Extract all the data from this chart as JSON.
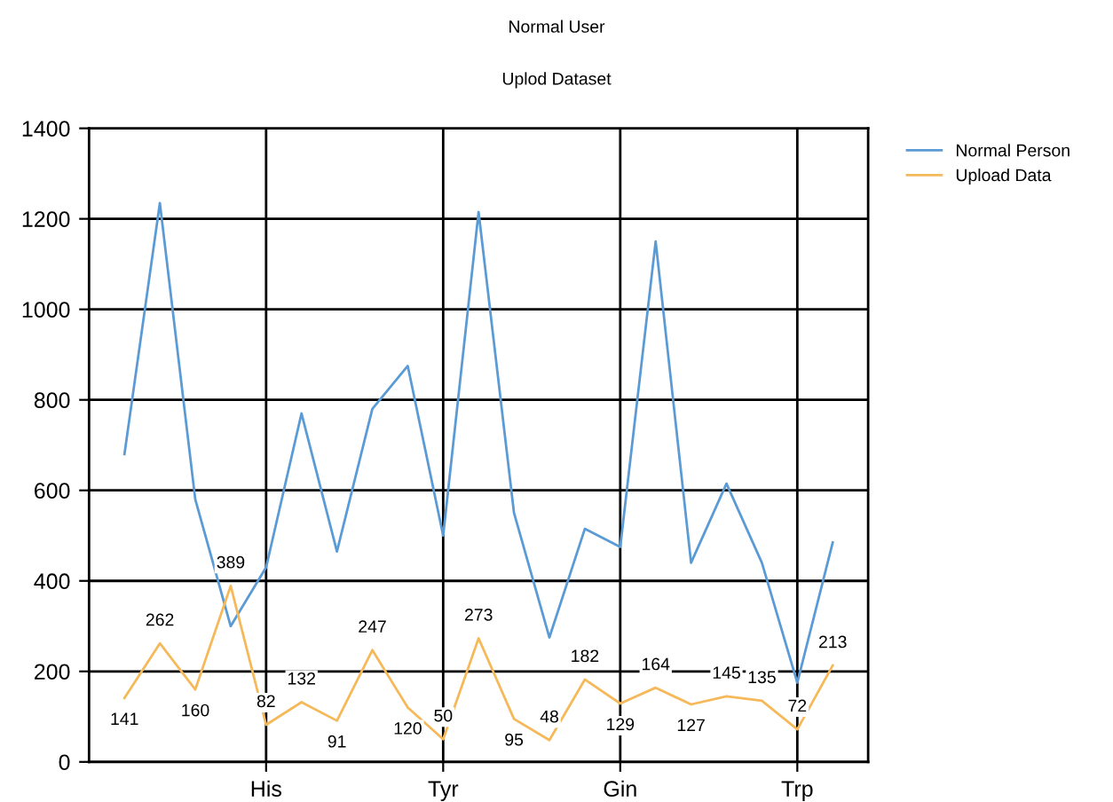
{
  "chart_data": {
    "type": "line",
    "title": "Normal User",
    "subtitle": "Uplod Dataset",
    "categories": [
      null,
      null,
      null,
      null,
      "His",
      null,
      null,
      null,
      null,
      "Tyr",
      null,
      null,
      null,
      null,
      "Gin",
      null,
      null,
      null,
      null,
      "Trp",
      null
    ],
    "series": [
      {
        "name": "Normal Person",
        "color": "#5b9bd5",
        "values": [
          680,
          1235,
          580,
          300,
          430,
          770,
          465,
          780,
          875,
          500,
          1215,
          550,
          275,
          515,
          475,
          1150,
          440,
          615,
          440,
          175,
          485
        ]
      },
      {
        "name": "Upload Data",
        "color": "#f5b95a",
        "values": [
          141,
          262,
          160,
          389,
          82,
          132,
          91,
          247,
          120,
          50,
          273,
          95,
          48,
          182,
          129,
          164,
          127,
          145,
          135,
          72,
          213
        ],
        "value_labels": [
          "141",
          "262",
          "160",
          "389",
          "82",
          "132",
          "91",
          "247",
          "120",
          "50",
          "273",
          "95",
          "48",
          "182",
          "129",
          "164",
          "127",
          "145",
          "135",
          "72",
          "213"
        ]
      }
    ],
    "ylim": [
      0,
      1400
    ],
    "yticks": [
      0,
      200,
      400,
      600,
      800,
      1000,
      1200,
      1400
    ],
    "grid": true,
    "legend": "top right",
    "marker": "none",
    "line_style": "solid"
  }
}
